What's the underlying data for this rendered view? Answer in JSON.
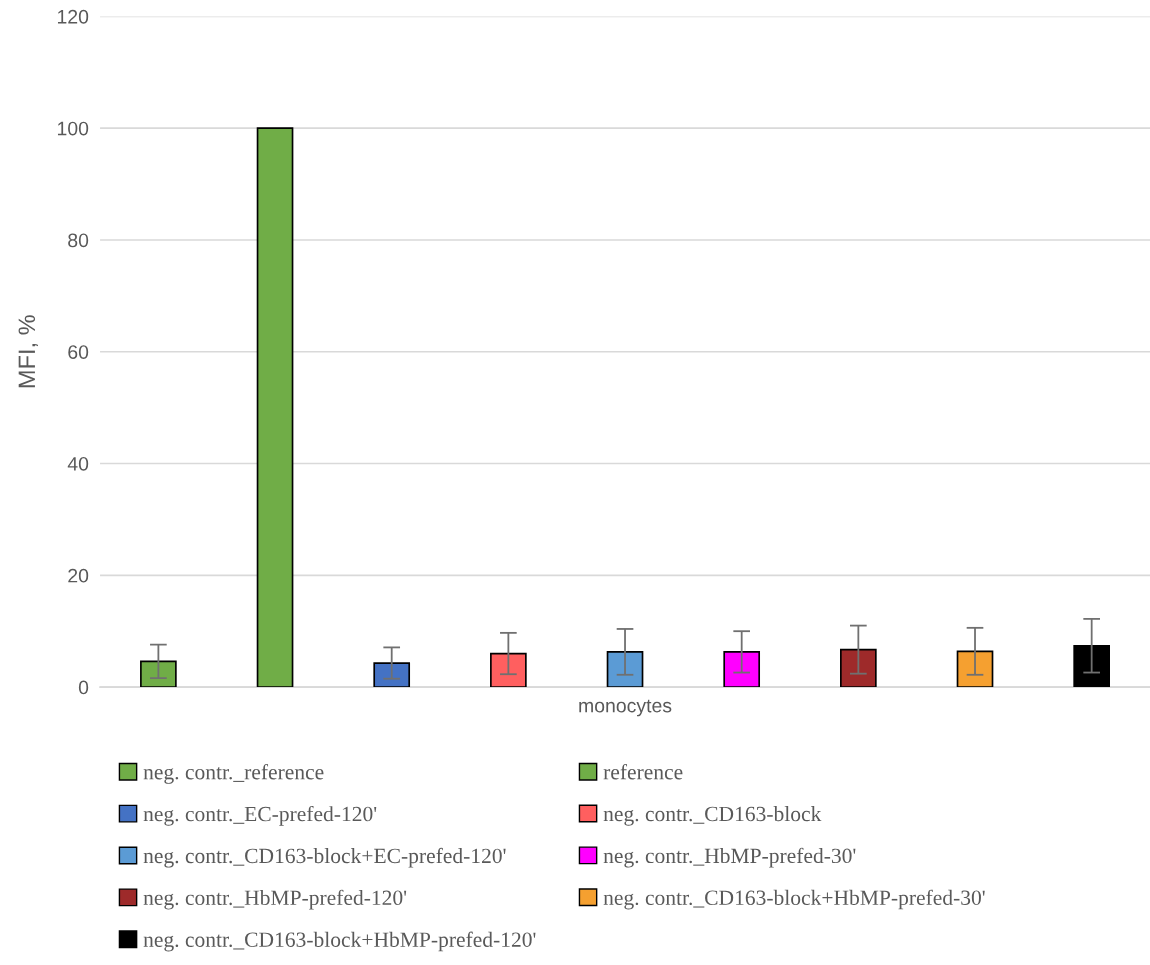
{
  "chart_data": {
    "type": "bar",
    "ylabel": "MFI, %",
    "categories": [
      "monocytes"
    ],
    "ylim": [
      0,
      120
    ],
    "yticks": [
      0,
      20,
      40,
      60,
      80,
      100,
      120
    ],
    "grid": "y",
    "legend": "bottom",
    "series": [
      {
        "name": "neg. contr._reference",
        "color": "#70ad47",
        "values": [
          4.6
        ],
        "errors": [
          3.0
        ]
      },
      {
        "name": "reference",
        "color": "#70ad47",
        "values": [
          100
        ],
        "errors": [
          null
        ]
      },
      {
        "name": "neg. contr._EC-prefed-120'",
        "color": "#4472c4",
        "values": [
          4.3
        ],
        "errors": [
          2.8
        ]
      },
      {
        "name": "neg. contr._CD163-block",
        "color": "#ff5f5f",
        "values": [
          6.0
        ],
        "errors": [
          3.7
        ]
      },
      {
        "name": "neg. contr._CD163-block+EC-prefed-120'",
        "color": "#5b9bd5",
        "values": [
          6.3
        ],
        "errors": [
          4.1
        ]
      },
      {
        "name": "neg. contr._HbMP-prefed-30'",
        "color": "#ff00ff",
        "values": [
          6.3
        ],
        "errors": [
          3.7
        ]
      },
      {
        "name": "neg. contr._HbMP-prefed-120'",
        "color": "#9e2a2a",
        "values": [
          6.7
        ],
        "errors": [
          4.3
        ]
      },
      {
        "name": "neg. contr._CD163-block+HbMP-prefed-30'",
        "color": "#f5a030",
        "values": [
          6.4
        ],
        "errors": [
          4.2
        ]
      },
      {
        "name": "neg. contr._CD163-block+HbMP-prefed-120'",
        "color": "#000000",
        "values": [
          7.4
        ],
        "errors": [
          4.8
        ]
      }
    ]
  }
}
